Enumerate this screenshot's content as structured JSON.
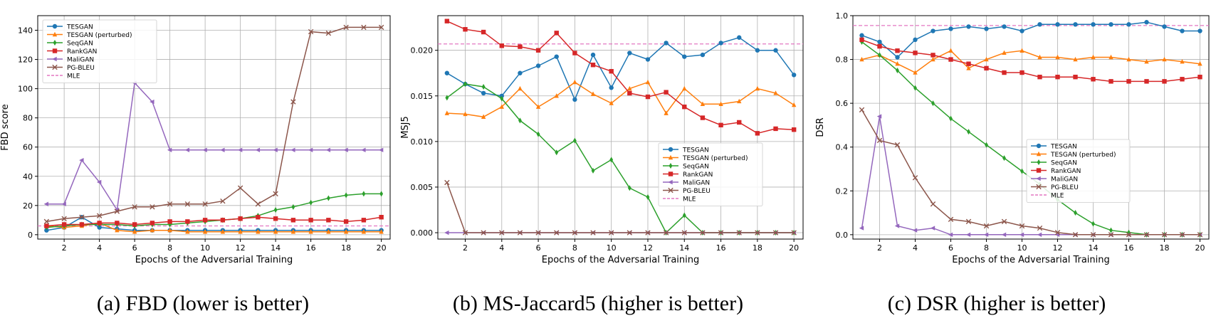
{
  "chart_data": [
    {
      "type": "line",
      "ylabel": "FBD score",
      "xlabel": "Epochs of the Adversarial Training",
      "caption": "(a) FBD (lower is better)",
      "xlim": [
        0.5,
        20.5
      ],
      "ylim": [
        -3,
        150
      ],
      "xticks": [
        2,
        4,
        6,
        8,
        10,
        12,
        14,
        16,
        18,
        20
      ],
      "yticks": [
        0,
        20,
        40,
        60,
        80,
        100,
        120,
        140
      ],
      "grid": true,
      "legend_position": "upper-left",
      "x": [
        1,
        2,
        3,
        4,
        5,
        6,
        7,
        8,
        9,
        10,
        11,
        12,
        13,
        14,
        15,
        16,
        17,
        18,
        19,
        20
      ],
      "series": [
        {
          "name": "TESGAN",
          "color": "#1f77b4",
          "marker": "circle",
          "values": [
            3,
            5,
            12,
            5,
            4,
            3,
            3,
            3,
            3,
            3,
            3,
            3,
            3,
            3,
            3,
            3,
            3,
            3,
            3,
            3
          ]
        },
        {
          "name": "TESGAN (perturbed)",
          "color": "#ff7f0e",
          "marker": "triangle",
          "values": [
            6,
            5,
            6,
            8,
            3,
            2,
            3,
            3,
            2,
            2,
            2,
            2,
            2,
            2,
            2,
            2,
            2,
            2,
            2,
            2
          ]
        },
        {
          "name": "SeqGAN",
          "color": "#2ca02c",
          "marker": "diamond",
          "values": [
            5,
            6,
            7,
            7,
            7,
            6,
            7,
            7,
            8,
            9,
            10,
            11,
            13,
            17,
            19,
            22,
            25,
            27,
            28,
            28
          ]
        },
        {
          "name": "RankGAN",
          "color": "#d62728",
          "marker": "square",
          "values": [
            6,
            7,
            7,
            8,
            8,
            7,
            8,
            9,
            9,
            10,
            10,
            11,
            12,
            11,
            10,
            10,
            10,
            9,
            10,
            12
          ]
        },
        {
          "name": "MaliGAN",
          "color": "#9467bd",
          "marker": "triangle-left",
          "values": [
            21,
            21,
            51,
            36,
            17,
            104,
            91,
            58,
            58,
            58,
            58,
            58,
            58,
            58,
            58,
            58,
            58,
            58,
            58,
            58
          ]
        },
        {
          "name": "PG-BLEU",
          "color": "#8c564b",
          "marker": "x",
          "values": [
            9,
            11,
            12,
            13,
            16,
            19,
            19,
            21,
            21,
            21,
            23,
            32,
            21,
            28,
            91,
            139,
            138,
            142,
            142,
            142
          ]
        }
      ],
      "reference": {
        "name": "MLE",
        "color": "#e377c2",
        "value": 6
      }
    },
    {
      "type": "line",
      "ylabel": "MSJ5",
      "xlabel": "Epochs of the Adversarial Training",
      "caption": "(b) MS-Jaccard5 (higher is better)",
      "xlim": [
        0.5,
        20.5
      ],
      "ylim": [
        -0.0007,
        0.0238
      ],
      "xticks": [
        2,
        4,
        6,
        8,
        10,
        12,
        14,
        16,
        18,
        20
      ],
      "yticks": [
        0.0,
        0.005,
        0.01,
        0.015,
        0.02
      ],
      "ytick_labels": [
        "0.000",
        "0.005",
        "0.010",
        "0.015",
        "0.020"
      ],
      "grid": true,
      "legend_position": "lower-right",
      "x": [
        1,
        2,
        3,
        4,
        5,
        6,
        7,
        8,
        9,
        10,
        11,
        12,
        13,
        14,
        15,
        16,
        17,
        18,
        19,
        20
      ],
      "series": [
        {
          "name": "TESGAN",
          "color": "#1f77b4",
          "marker": "circle",
          "values": [
            0.0175,
            0.0163,
            0.0153,
            0.015,
            0.0175,
            0.0183,
            0.0193,
            0.0146,
            0.0195,
            0.0159,
            0.0197,
            0.019,
            0.0208,
            0.0193,
            0.0195,
            0.0208,
            0.0214,
            0.02,
            0.02,
            0.0173
          ]
        },
        {
          "name": "TESGAN (perturbed)",
          "color": "#ff7f0e",
          "marker": "triangle",
          "values": [
            0.0131,
            0.013,
            0.0127,
            0.0138,
            0.0158,
            0.0138,
            0.015,
            0.0165,
            0.0152,
            0.0142,
            0.0158,
            0.0165,
            0.0131,
            0.0158,
            0.0141,
            0.0141,
            0.0144,
            0.0158,
            0.0153,
            0.014
          ]
        },
        {
          "name": "SeqGAN",
          "color": "#2ca02c",
          "marker": "diamond",
          "values": [
            0.0148,
            0.0163,
            0.016,
            0.0147,
            0.0123,
            0.0108,
            0.0088,
            0.0101,
            0.0068,
            0.008,
            0.0049,
            0.0039,
            0.0,
            0.0019,
            0.0,
            0.0,
            0.0,
            0.0,
            0.0,
            0.0
          ]
        },
        {
          "name": "RankGAN",
          "color": "#d62728",
          "marker": "square",
          "values": [
            0.0232,
            0.0223,
            0.022,
            0.0205,
            0.0204,
            0.02,
            0.0219,
            0.0197,
            0.0184,
            0.0177,
            0.0153,
            0.0149,
            0.0154,
            0.0138,
            0.0126,
            0.0118,
            0.0121,
            0.0109,
            0.0114,
            0.0113
          ]
        },
        {
          "name": "MaliGAN",
          "color": "#9467bd",
          "marker": "triangle-left",
          "values": [
            0.0,
            0.0,
            0.0,
            0.0,
            0.0,
            0.0,
            0.0,
            0.0,
            0.0,
            0.0,
            0.0,
            0.0,
            0.0,
            0.0,
            0.0,
            0.0,
            0.0,
            0.0,
            0.0,
            0.0
          ]
        },
        {
          "name": "PG-BLEU",
          "color": "#8c564b",
          "marker": "x",
          "values": [
            0.0055,
            0.0,
            0.0,
            0.0,
            0.0,
            0.0,
            0.0,
            0.0,
            0.0,
            0.0,
            0.0,
            0.0,
            0.0,
            0.0,
            0.0,
            0.0,
            0.0,
            0.0,
            0.0,
            0.0
          ]
        }
      ],
      "reference": {
        "name": "MLE",
        "color": "#e377c2",
        "value": 0.0207
      }
    },
    {
      "type": "line",
      "ylabel": "DSR",
      "xlabel": "Epochs of the Adversarial Training",
      "caption": "(c) DSR (higher is better)",
      "xlim": [
        0.5,
        20.5
      ],
      "ylim": [
        -0.02,
        1.0
      ],
      "xticks": [
        2,
        4,
        6,
        8,
        10,
        12,
        14,
        16,
        18,
        20
      ],
      "yticks": [
        0.0,
        0.2,
        0.4,
        0.6,
        0.8,
        1.0
      ],
      "ytick_labels": [
        "0.0",
        "0.2",
        "0.4",
        "0.6",
        "0.8",
        "1.0"
      ],
      "grid": true,
      "legend_position": "center-right",
      "x": [
        1,
        2,
        3,
        4,
        5,
        6,
        7,
        8,
        9,
        10,
        11,
        12,
        13,
        14,
        15,
        16,
        17,
        18,
        19,
        20
      ],
      "series": [
        {
          "name": "TESGAN",
          "color": "#1f77b4",
          "marker": "circle",
          "values": [
            0.91,
            0.88,
            0.81,
            0.89,
            0.93,
            0.94,
            0.95,
            0.94,
            0.95,
            0.93,
            0.96,
            0.96,
            0.96,
            0.96,
            0.96,
            0.96,
            0.97,
            0.95,
            0.93,
            0.93
          ]
        },
        {
          "name": "TESGAN (perturbed)",
          "color": "#ff7f0e",
          "marker": "triangle",
          "values": [
            0.8,
            0.82,
            0.78,
            0.74,
            0.8,
            0.84,
            0.76,
            0.8,
            0.83,
            0.84,
            0.81,
            0.81,
            0.8,
            0.81,
            0.81,
            0.8,
            0.79,
            0.8,
            0.79,
            0.78
          ]
        },
        {
          "name": "SeqGAN",
          "color": "#2ca02c",
          "marker": "diamond",
          "values": [
            0.88,
            0.82,
            0.75,
            0.67,
            0.6,
            0.53,
            0.47,
            0.41,
            0.35,
            0.29,
            0.23,
            0.16,
            0.1,
            0.05,
            0.02,
            0.01,
            0.0,
            0.0,
            0.0,
            0.0
          ]
        },
        {
          "name": "RankGAN",
          "color": "#d62728",
          "marker": "square",
          "values": [
            0.89,
            0.86,
            0.84,
            0.83,
            0.82,
            0.8,
            0.78,
            0.76,
            0.74,
            0.74,
            0.72,
            0.72,
            0.72,
            0.71,
            0.7,
            0.7,
            0.7,
            0.7,
            0.71,
            0.72
          ]
        },
        {
          "name": "MaliGAN",
          "color": "#9467bd",
          "marker": "triangle-left",
          "values": [
            0.03,
            0.54,
            0.04,
            0.02,
            0.03,
            0.0,
            0.0,
            0.0,
            0.0,
            0.0,
            0.0,
            0.0,
            0.0,
            0.0,
            0.0,
            0.0,
            0.0,
            0.0,
            0.0,
            0.0
          ]
        },
        {
          "name": "PG-BLEU",
          "color": "#8c564b",
          "marker": "x",
          "values": [
            0.57,
            0.43,
            0.41,
            0.26,
            0.14,
            0.07,
            0.06,
            0.04,
            0.06,
            0.04,
            0.03,
            0.01,
            0.0,
            0.0,
            0.0,
            0.0,
            0.0,
            0.0,
            0.0,
            0.0
          ]
        }
      ],
      "reference": {
        "name": "MLE",
        "color": "#e377c2",
        "value": 0.955
      }
    }
  ]
}
